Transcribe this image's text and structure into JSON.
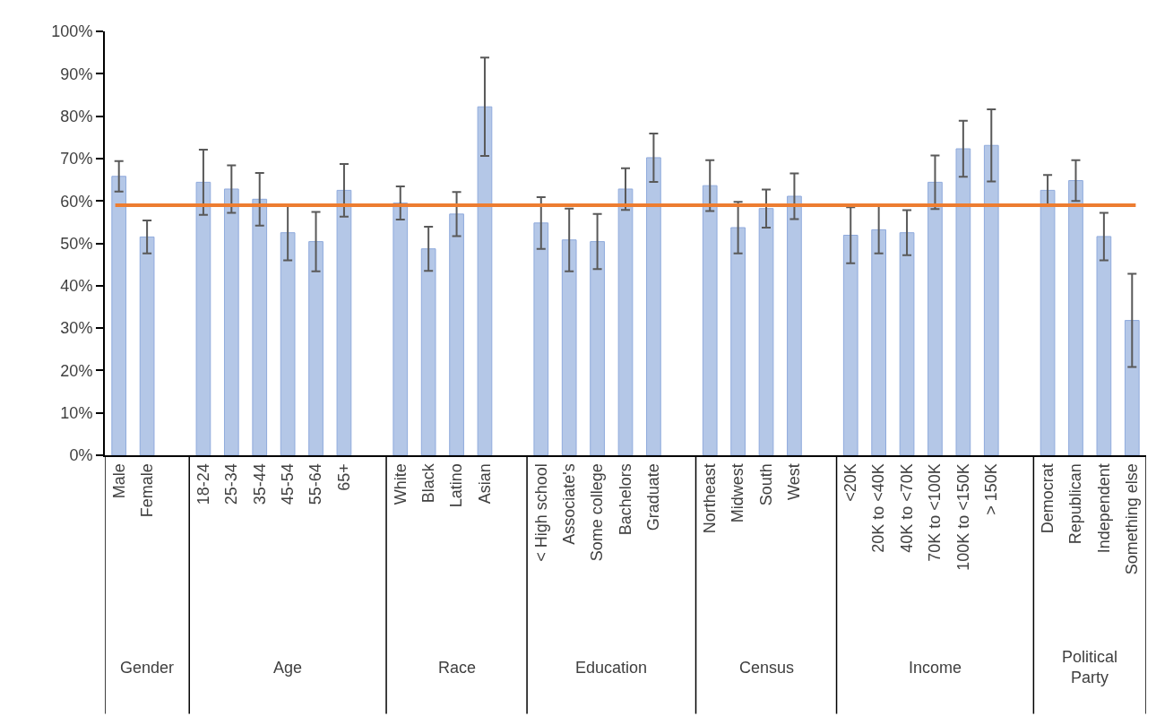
{
  "chart_data": {
    "type": "bar",
    "categories": [
      "Male",
      "Female",
      null,
      "18-24",
      "25-34",
      "35-44",
      "45-54",
      "55-64",
      "65+",
      null,
      "White",
      "Black",
      "Latino",
      "Asian",
      null,
      "< High school",
      "Associate's",
      "Some college",
      "Bachelors",
      "Graduate",
      null,
      "Northeast",
      "Midwest",
      "South",
      "West",
      null,
      "<20K",
      "20K to <40K",
      "40K to <70K",
      "70K to <100K",
      "100K to <150K",
      "> 150K",
      null,
      "Democrat",
      "Republican",
      "Independent",
      "Something else"
    ],
    "values": [
      65.8,
      51.5,
      null,
      64.4,
      62.8,
      60.4,
      52.5,
      50.4,
      62.5,
      null,
      59.5,
      48.7,
      56.9,
      82.2,
      null,
      54.8,
      50.8,
      50.4,
      62.8,
      70.2,
      null,
      63.6,
      53.7,
      58.2,
      61.1,
      null,
      51.9,
      53.2,
      52.5,
      64.4,
      72.3,
      73.1,
      null,
      62.5,
      64.8,
      51.6,
      31.8
    ],
    "errors": [
      3.6,
      3.9,
      null,
      7.7,
      5.6,
      6.2,
      6.5,
      7,
      6.2,
      null,
      3.9,
      5.2,
      5.2,
      11.6,
      null,
      6.1,
      7.4,
      6.5,
      4.9,
      5.7,
      null,
      6,
      6.1,
      4.5,
      5.4,
      null,
      6.6,
      5.6,
      5.3,
      6.3,
      6.6,
      8.5,
      null,
      3.6,
      4.8,
      5.6,
      11
    ],
    "color": "#b4c7e7",
    "ylim": [
      0,
      100
    ],
    "yticks": [
      {
        "value": 0,
        "label": "0%"
      },
      {
        "value": 10,
        "label": "10%"
      },
      {
        "value": 20,
        "label": "20%"
      },
      {
        "value": 30,
        "label": "30%"
      },
      {
        "value": 40,
        "label": "40%"
      },
      {
        "value": 50,
        "label": "50%"
      },
      {
        "value": 60,
        "label": "60%"
      },
      {
        "value": 70,
        "label": "70%"
      },
      {
        "value": 80,
        "label": "80%"
      },
      {
        "value": 90,
        "label": "90%"
      },
      {
        "value": 100,
        "label": "100%"
      }
    ],
    "ref_lines": [
      {
        "axis": "y",
        "value": 59,
        "color": "#ed7d31"
      }
    ],
    "annotations": [
      "Gender",
      "Age",
      "Race",
      "Education",
      "Census",
      "Income",
      "Political Party"
    ],
    "grid": false
  }
}
